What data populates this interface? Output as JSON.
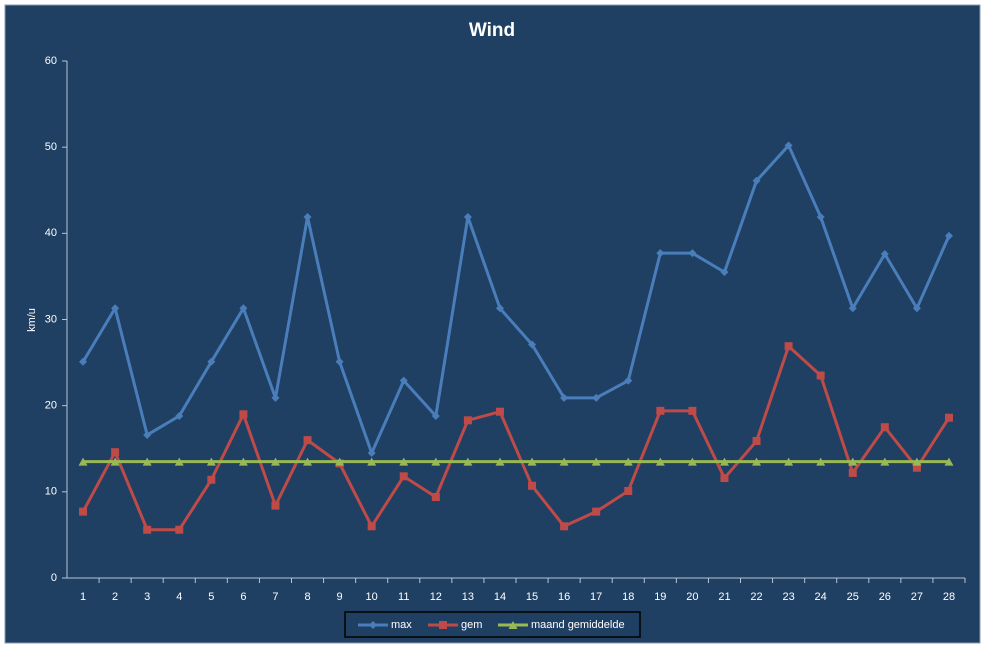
{
  "chart_data": {
    "type": "line",
    "title": "Wind",
    "y_label": "km/u",
    "categories": [
      "1",
      "2",
      "3",
      "4",
      "5",
      "6",
      "7",
      "8",
      "9",
      "10",
      "11",
      "12",
      "13",
      "14",
      "15",
      "16",
      "17",
      "18",
      "19",
      "20",
      "21",
      "22",
      "23",
      "24",
      "25",
      "26",
      "27",
      "28"
    ],
    "series": [
      {
        "name": "max",
        "color": "#4a7ebb",
        "marker": "diamond",
        "values": [
          25.1,
          31.3,
          16.6,
          18.8,
          25.1,
          31.3,
          20.9,
          41.9,
          25.1,
          14.5,
          22.9,
          18.8,
          41.9,
          31.3,
          27.1,
          20.9,
          20.9,
          22.9,
          37.7,
          37.7,
          35.5,
          46.1,
          50.2,
          41.9,
          31.3,
          37.6,
          31.3,
          39.7
        ]
      },
      {
        "name": "gem",
        "color": "#be4b48",
        "marker": "square",
        "values": [
          7.7,
          14.6,
          5.6,
          5.6,
          11.4,
          19.0,
          8.4,
          16.0,
          13.3,
          6.0,
          11.8,
          9.4,
          18.3,
          19.3,
          10.7,
          6.0,
          7.7,
          10.1,
          19.4,
          19.4,
          11.6,
          15.9,
          26.9,
          23.5,
          12.2,
          17.5,
          12.8,
          18.6
        ]
      },
      {
        "name": "maand gemiddelde",
        "color": "#98b954",
        "marker": "triangle",
        "values": [
          13.5,
          13.5,
          13.5,
          13.5,
          13.5,
          13.5,
          13.5,
          13.5,
          13.5,
          13.5,
          13.5,
          13.5,
          13.5,
          13.5,
          13.5,
          13.5,
          13.5,
          13.5,
          13.5,
          13.5,
          13.5,
          13.5,
          13.5,
          13.5,
          13.5,
          13.5,
          13.5,
          13.5
        ]
      }
    ],
    "ylim": [
      0,
      60
    ],
    "yticks": [
      0,
      10,
      20,
      30,
      40,
      50,
      60
    ],
    "grid": false,
    "legend": "bottom"
  }
}
